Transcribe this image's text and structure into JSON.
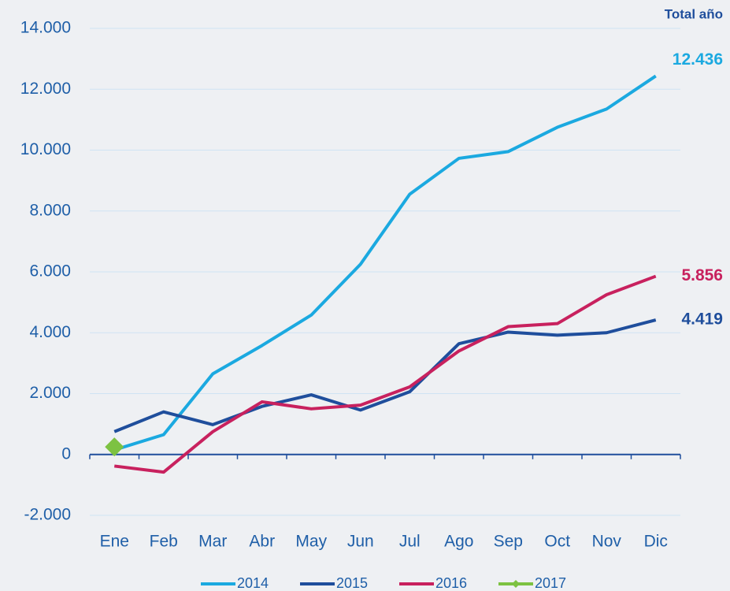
{
  "chart_data": {
    "type": "line",
    "annotation": "Total año",
    "categories": [
      "Ene",
      "Feb",
      "Mar",
      "Abr",
      "May",
      "Jun",
      "Jul",
      "Ago",
      "Sep",
      "Oct",
      "Nov",
      "Dic"
    ],
    "series": [
      {
        "name": "2014",
        "color": "#1ba9e0",
        "values": [
          150,
          650,
          2650,
          3580,
          4580,
          6250,
          8550,
          9730,
          9950,
          10750,
          11350,
          12436
        ],
        "value_labels": [
          null,
          null,
          null,
          null,
          null,
          null,
          null,
          null,
          null,
          null,
          null,
          "12.436"
        ]
      },
      {
        "name": "2015",
        "color": "#1f4e9c",
        "values": [
          750,
          1400,
          980,
          1580,
          1960,
          1460,
          2060,
          3640,
          4020,
          3920,
          4000,
          4419
        ],
        "value_labels": [
          null,
          null,
          null,
          null,
          null,
          null,
          null,
          null,
          null,
          null,
          null,
          "4.419"
        ]
      },
      {
        "name": "2016",
        "color": "#c8215e",
        "values": [
          -380,
          -580,
          750,
          1730,
          1500,
          1620,
          2220,
          3400,
          4200,
          4300,
          5250,
          5856
        ],
        "value_labels": [
          null,
          null,
          null,
          null,
          null,
          null,
          null,
          null,
          null,
          null,
          null,
          "5.856"
        ]
      },
      {
        "name": "2017",
        "color": "#7dc242",
        "marker": "diamond",
        "values": [
          250,
          null,
          null,
          null,
          null,
          null,
          null,
          null,
          null,
          null,
          null,
          null
        ]
      }
    ],
    "ylim": [
      -2000,
      14000
    ],
    "yticks": [
      {
        "value": -2000,
        "label": "-2.000"
      },
      0,
      {
        "value": 2000,
        "label": "2.000"
      },
      {
        "value": 4000,
        "label": "4.000"
      },
      {
        "value": 6000,
        "label": "6.000"
      },
      {
        "value": 8000,
        "label": "8.000"
      },
      {
        "value": 10000,
        "label": "10.000"
      },
      {
        "value": 12000,
        "label": "12.000"
      },
      {
        "value": 14000,
        "label": "14.000"
      }
    ],
    "grid": true,
    "legend": "bottom"
  }
}
